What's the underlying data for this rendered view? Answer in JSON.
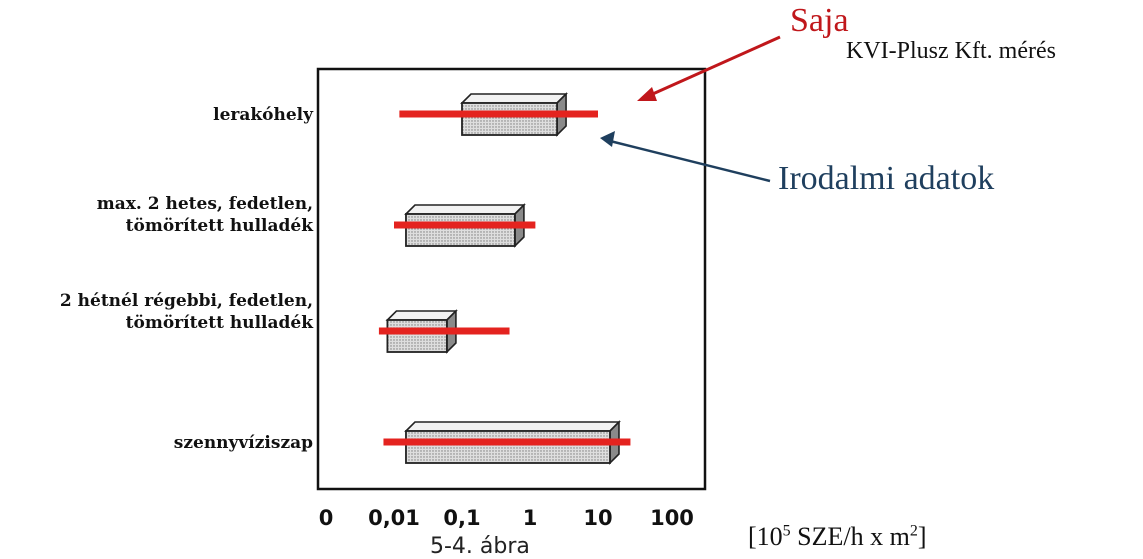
{
  "chart_data": {
    "type": "bar",
    "subtype": "range",
    "orientation": "horizontal",
    "xscale": "log",
    "xlim": [
      0.001,
      100
    ],
    "x_tick_labels": [
      "0",
      "0,01",
      "0,1",
      "1",
      "10",
      "100"
    ],
    "categories": [
      "lerakóhely",
      "max. 2 hetes, fedetlen, tömörített hulladék",
      "2 hétnél régebbi, fedetlen, tömörített hulladék",
      "szennyvíziszap"
    ],
    "category_lines": [
      [
        "lerakóhely"
      ],
      [
        "max. 2 hetes, fedetlen,",
        "tömörített hulladék"
      ],
      [
        "2 hétnél régebbi, fedetlen,",
        "tömörített hulladék"
      ],
      [
        "szennyvíziszap"
      ]
    ],
    "series": [
      {
        "name": "Irodalmi adatok",
        "style": "box",
        "ranges": [
          [
            0.1,
            2.5
          ],
          [
            0.015,
            0.6
          ],
          [
            0.008,
            0.06
          ],
          [
            0.015,
            15
          ]
        ]
      },
      {
        "name": "KVI-Plusz Kft. mérés",
        "style": "line",
        "ranges": [
          [
            0.012,
            10
          ],
          [
            0.01,
            1.2
          ],
          [
            0.006,
            0.5
          ],
          [
            0.007,
            30
          ]
        ]
      }
    ],
    "annotations": {
      "saja_label": "Saja",
      "kvi_label": "KVI-Plusz Kft. mérés",
      "irodalmi_label": "Irodalmi adatok"
    },
    "unit_label": {
      "base": "[10",
      "exp": "5",
      "mid": " SZE/h x m",
      "exp2": "2",
      "end": "]"
    },
    "caption": "5-4. ábra"
  },
  "colors": {
    "measurement_line": "#e4231f",
    "measurement_arrow": "#c0171b",
    "literature_arrow": "#1f3f5e",
    "box_fill": "#d4d4d4",
    "box_top": "#f2f2f2",
    "box_side": "#8a8a8a",
    "axis": "#111111"
  }
}
